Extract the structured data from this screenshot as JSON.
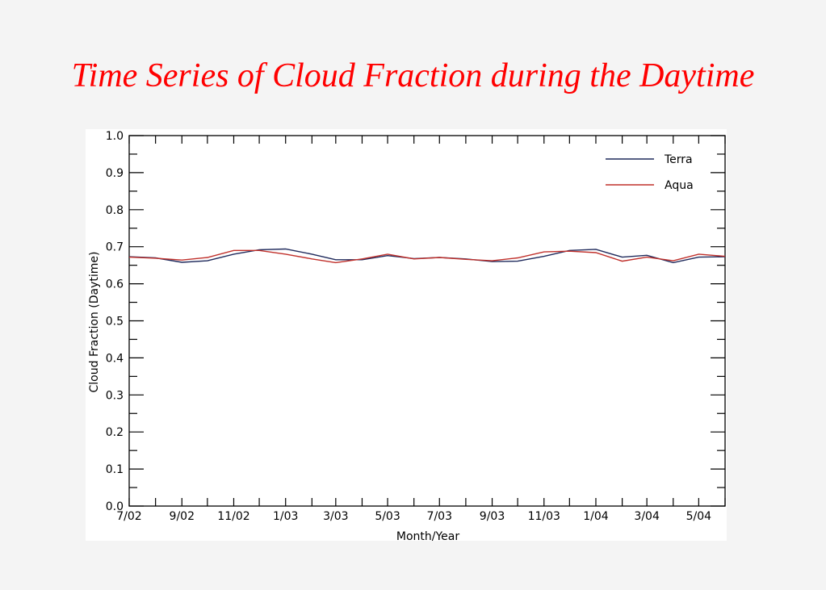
{
  "slide": {
    "title": "Time Series of Cloud Fraction during the Daytime",
    "title_color": "#ff0000"
  },
  "chart_data": {
    "type": "line",
    "xlabel": "Month/Year",
    "ylabel": "Cloud Fraction (Daytime)",
    "ylim": [
      0,
      1.0
    ],
    "yticks": [
      "0.0",
      "0.1",
      "0.2",
      "0.3",
      "0.4",
      "0.5",
      "0.6",
      "0.7",
      "0.8",
      "0.9",
      "1.0"
    ],
    "xlim": [
      "2002-07",
      "2004-06"
    ],
    "x": [
      "2002-07",
      "2002-08",
      "2002-09",
      "2002-10",
      "2002-11",
      "2002-12",
      "2003-01",
      "2003-02",
      "2003-03",
      "2003-04",
      "2003-05",
      "2003-06",
      "2003-07",
      "2003-08",
      "2003-09",
      "2003-10",
      "2003-11",
      "2003-12",
      "2004-01",
      "2004-02",
      "2004-03",
      "2004-04",
      "2004-05",
      "2004-06"
    ],
    "xticklabels": [
      "7/02",
      "9/02",
      "11/02",
      "1/03",
      "3/03",
      "5/03",
      "7/03",
      "9/03",
      "11/03",
      "1/04",
      "3/04",
      "5/04"
    ],
    "legend_position": "top-right",
    "grid": false,
    "series": [
      {
        "name": "Terra",
        "color": "#1f2a5c",
        "values": [
          0.673,
          0.67,
          0.658,
          0.662,
          0.68,
          0.692,
          0.694,
          0.68,
          0.665,
          0.665,
          0.676,
          0.668,
          0.671,
          0.667,
          0.66,
          0.661,
          0.674,
          0.69,
          0.693,
          0.672,
          0.677,
          0.657,
          0.672,
          0.673
        ]
      },
      {
        "name": "Aqua",
        "color": "#c0302b",
        "values": [
          0.672,
          0.669,
          0.664,
          0.671,
          0.69,
          0.69,
          0.68,
          0.667,
          0.657,
          0.667,
          0.68,
          0.667,
          0.671,
          0.666,
          0.662,
          0.67,
          0.686,
          0.688,
          0.684,
          0.661,
          0.672,
          0.662,
          0.68,
          0.674
        ]
      }
    ]
  }
}
